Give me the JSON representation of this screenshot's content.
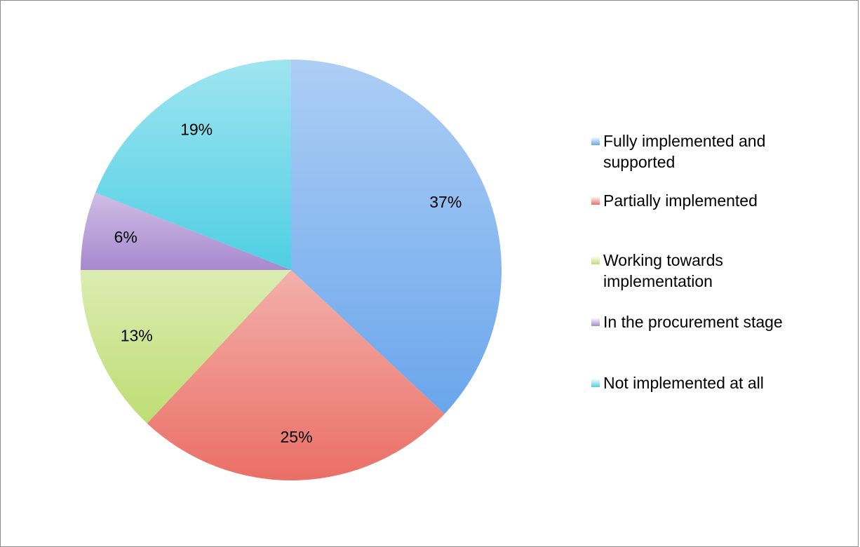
{
  "chart_data": {
    "type": "pie",
    "categories": [
      "Fully implemented and supported",
      "Partially implemented",
      "Working towards implementation",
      "In the procurement stage",
      "Not implemented at all"
    ],
    "values": [
      37,
      25,
      13,
      6,
      19
    ],
    "value_labels": [
      "37%",
      "25%",
      "13%",
      "6%",
      "19%"
    ],
    "colors": [
      "#6aa6ec",
      "#ea6f66",
      "#bedd73",
      "#a789cf",
      "#4fcfe4"
    ],
    "legend": "right"
  }
}
